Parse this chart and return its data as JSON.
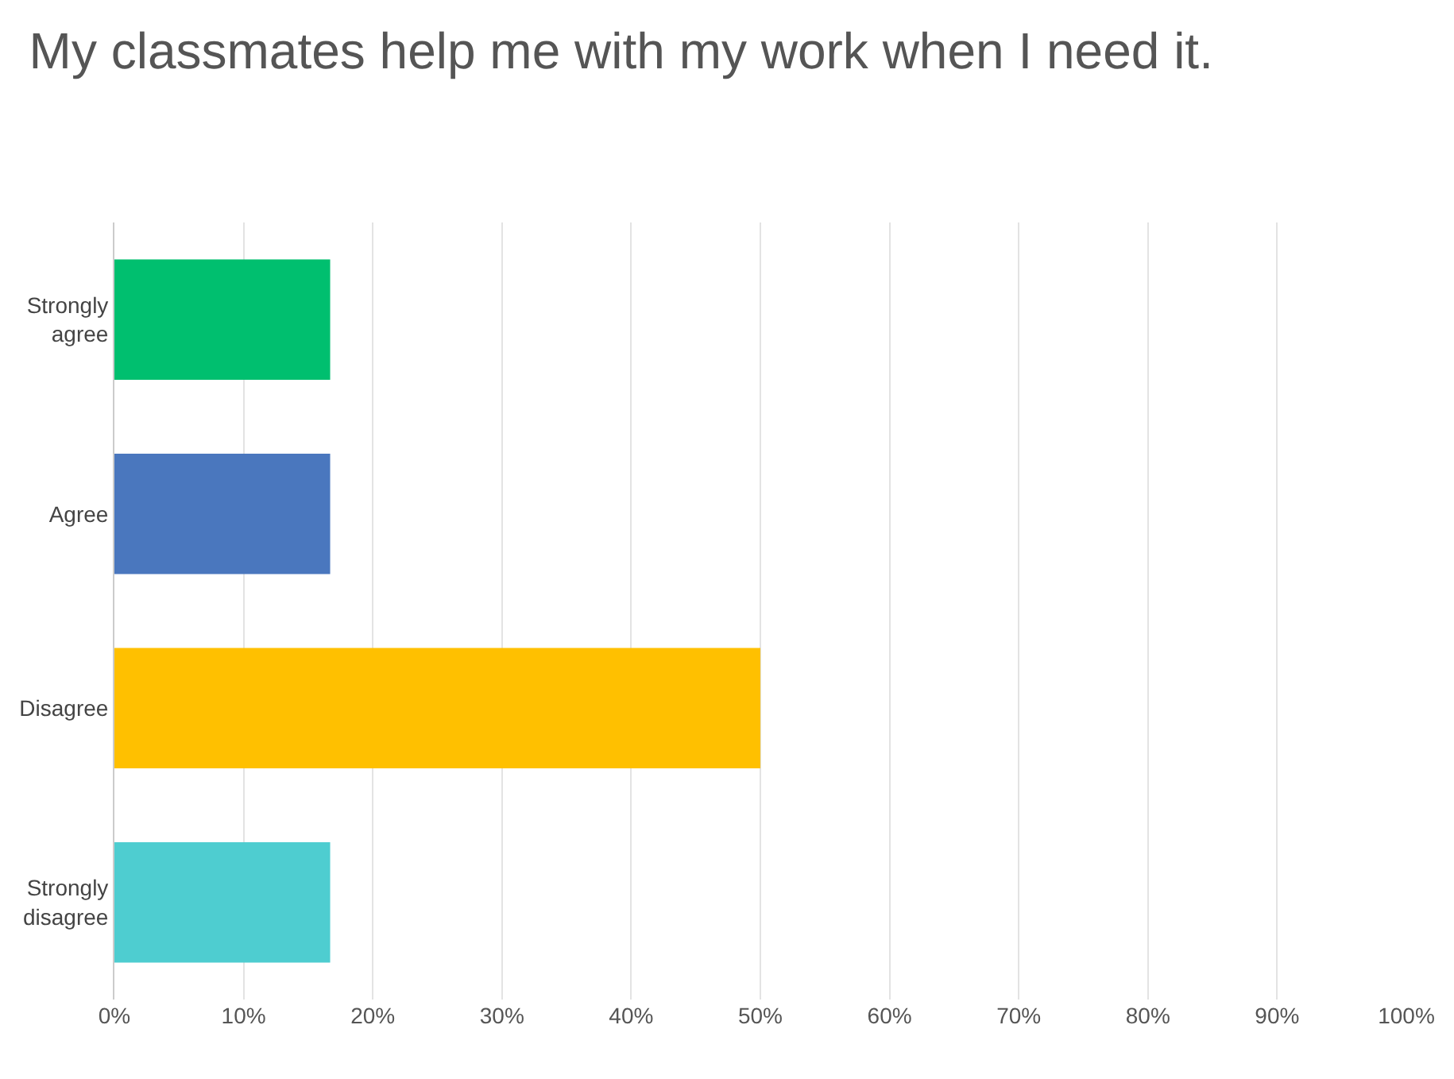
{
  "chart_data": {
    "type": "bar",
    "orientation": "horizontal",
    "title": "My classmates help me with my work when I need it.",
    "categories": [
      "Strongly agree",
      "Agree",
      "Disagree",
      "Strongly disagree"
    ],
    "values": [
      16.7,
      16.7,
      50,
      16.7
    ],
    "colors": [
      "#00bf6f",
      "#4a77be",
      "#ffc000",
      "#4ecdd0"
    ],
    "xlim": [
      0,
      100
    ],
    "xticks": [
      {
        "value": 0,
        "label": "0%"
      },
      {
        "value": 10,
        "label": "10%"
      },
      {
        "value": 20,
        "label": "20%"
      },
      {
        "value": 30,
        "label": "30%"
      },
      {
        "value": 40,
        "label": "40%"
      },
      {
        "value": 50,
        "label": "50%"
      },
      {
        "value": 60,
        "label": "60%"
      },
      {
        "value": 70,
        "label": "70%"
      },
      {
        "value": 80,
        "label": "80%"
      },
      {
        "value": 90,
        "label": "90%"
      },
      {
        "value": 100,
        "label": "100%"
      }
    ],
    "grid": "x"
  }
}
